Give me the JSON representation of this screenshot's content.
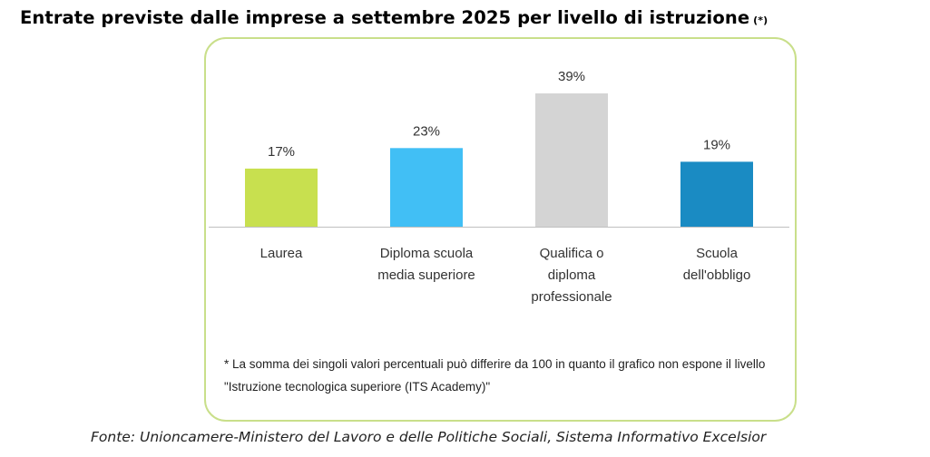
{
  "header": {
    "title": "Entrate previste dalle imprese a settembre 2025 per livello di istruzione",
    "title_mark": "(*)"
  },
  "note": "* La somma dei singoli valori percentuali può differire da 100 in quanto il grafico non espone il livello \"Istruzione tecnologica superiore (ITS Academy)\"",
  "source": "Fonte: Unioncamere-Ministero del Lavoro e delle Politiche Sociali, Sistema Informativo Excelsior",
  "chart_data": {
    "type": "bar",
    "categories": [
      [
        "Laurea"
      ],
      [
        "Diploma scuola",
        "media superiore"
      ],
      [
        "Qualifica o",
        "diploma",
        "professionale"
      ],
      [
        "Scuola",
        "dell'obbligo"
      ]
    ],
    "values": [
      17,
      23,
      39,
      19
    ],
    "value_labels": [
      "17%",
      "23%",
      "39%",
      "19%"
    ],
    "colors": [
      "#c8e04f",
      "#41bff5",
      "#d4d4d4",
      "#1a8bc3"
    ],
    "unit": "%",
    "ylim": [
      0,
      39
    ],
    "grid": false,
    "legend": "none",
    "title": "",
    "xlabel": "",
    "ylabel": ""
  }
}
